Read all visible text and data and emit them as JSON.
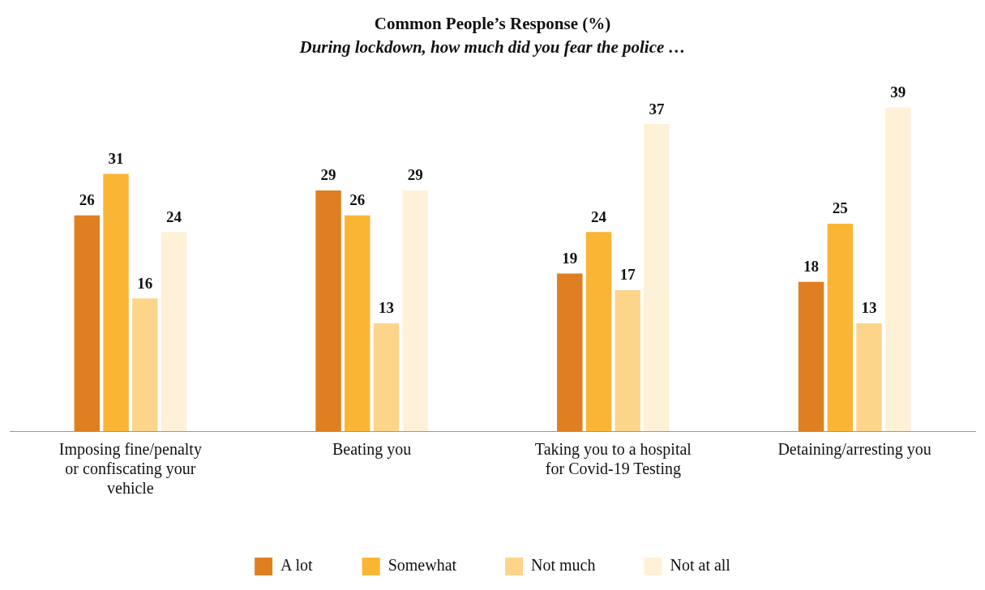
{
  "chart_data": {
    "type": "bar",
    "title": "Common People’s Response (%)",
    "subtitle": "During lockdown, how much did you fear the police …",
    "categories": [
      "Imposing fine/penalty\nor confiscating your\nvehicle",
      "Beating you",
      "Taking you to a hospital\nfor Covid-19 Testing",
      "Detaining/arresting you"
    ],
    "series": [
      {
        "name": "A lot",
        "color": "#e07f22",
        "values": [
          26,
          29,
          19,
          18
        ]
      },
      {
        "name": "Somewhat",
        "color": "#fbb535",
        "values": [
          31,
          26,
          24,
          25
        ]
      },
      {
        "name": "Not much",
        "color": "#fdd58a",
        "values": [
          16,
          13,
          17,
          13
        ]
      },
      {
        "name": "Not at all",
        "color": "#fff0d8",
        "values": [
          24,
          29,
          37,
          39
        ]
      }
    ],
    "data_labels": true,
    "legend": "bottom",
    "grid": false,
    "tick_labels": "x"
  }
}
